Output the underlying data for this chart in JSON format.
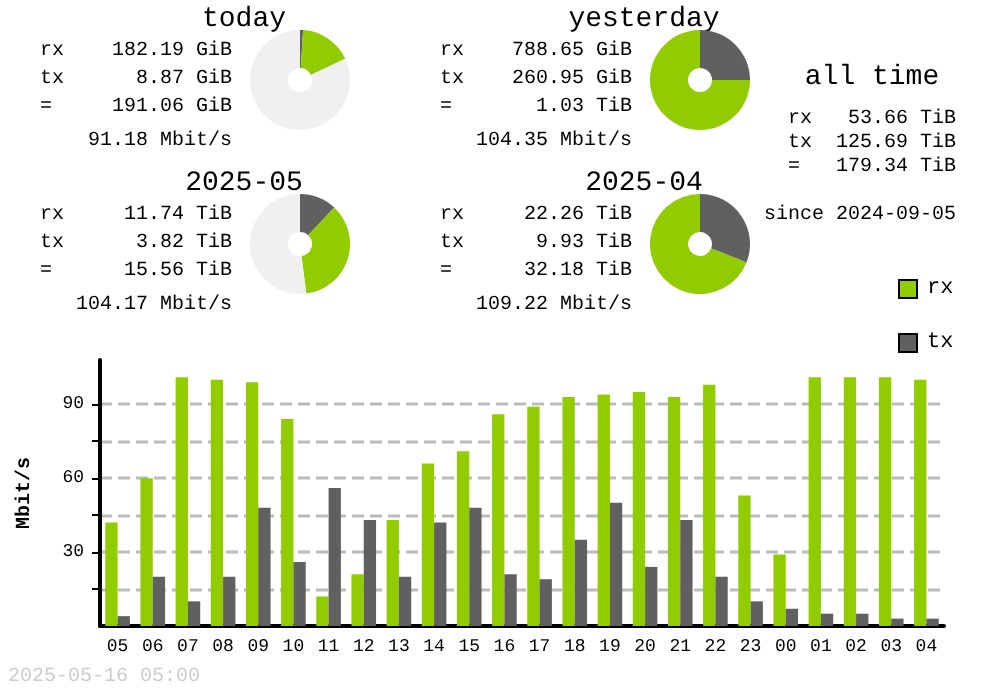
{
  "chart_data": [
    {
      "type": "donut",
      "title": "today",
      "categories": [
        null,
        null,
        null
      ],
      "values": [
        1,
        17,
        82
      ],
      "colors": [
        "#606060",
        "#90cc00",
        "#f0f0f0"
      ],
      "annotations": [
        "rx    182.19 GiB",
        "tx      8.87 GiB",
        "=     191.06 GiB",
        "91.18 Mbit/s"
      ]
    },
    {
      "type": "donut",
      "title": "yesterday",
      "categories": [
        null,
        null
      ],
      "values": [
        25,
        75
      ],
      "colors": [
        "#606060",
        "#90cc00"
      ],
      "annotations": [
        "rx    788.65 GiB",
        "tx    260.95 GiB",
        "=       1.03 TiB",
        "104.35 Mbit/s"
      ]
    },
    {
      "type": "donut",
      "title": "2025-05",
      "categories": [
        null,
        null,
        null
      ],
      "values": [
        12,
        36,
        52
      ],
      "colors": [
        "#606060",
        "#90cc00",
        "#f0f0f0"
      ],
      "annotations": [
        "rx     11.74 TiB",
        "tx      3.82 TiB",
        "=      15.56 TiB",
        "104.17 Mbit/s"
      ]
    },
    {
      "type": "donut",
      "title": "2025-04",
      "categories": [
        null,
        null
      ],
      "values": [
        31,
        69
      ],
      "colors": [
        "#606060",
        "#90cc00"
      ],
      "annotations": [
        "rx     22.26 TiB",
        "tx      9.93 TiB",
        "=      32.18 TiB",
        "109.22 Mbit/s"
      ]
    },
    {
      "type": "other",
      "title": "all time",
      "annotations": [
        "rx   53.66 TiB",
        "tx  125.69 TiB",
        "=   179.34 TiB",
        "since 2024-09-05"
      ]
    },
    {
      "type": "bar",
      "ylabel": "Mbit/s",
      "categories": [
        "05",
        "06",
        "07",
        "08",
        "09",
        "10",
        "11",
        "12",
        "13",
        "14",
        "15",
        "16",
        "17",
        "18",
        "19",
        "20",
        "21",
        "22",
        "23",
        "00",
        "01",
        "02",
        "03",
        "04"
      ],
      "series": [
        {
          "name": "rx",
          "color": "#90cc00",
          "values": [
            42,
            60,
            101,
            100,
            99,
            84,
            12,
            21,
            43,
            66,
            71,
            86,
            89,
            93,
            94,
            95,
            93,
            98,
            53,
            29,
            101,
            101,
            101,
            100
          ]
        },
        {
          "name": "tx",
          "color": "#606060",
          "values": [
            4,
            20,
            10,
            20,
            48,
            26,
            56,
            43,
            20,
            42,
            48,
            21,
            19,
            35,
            50,
            24,
            43,
            20,
            10,
            7,
            5,
            5,
            3,
            3
          ]
        }
      ],
      "ylim": [
        0,
        108
      ],
      "yticks": [
        {
          "value": 15,
          "label": null
        },
        30,
        {
          "value": 45,
          "label": null
        },
        60,
        {
          "value": 75,
          "label": null
        },
        90
      ],
      "grid": "y",
      "legend": "top right",
      "annotations": [
        "2025-05-16 05:00"
      ]
    }
  ]
}
